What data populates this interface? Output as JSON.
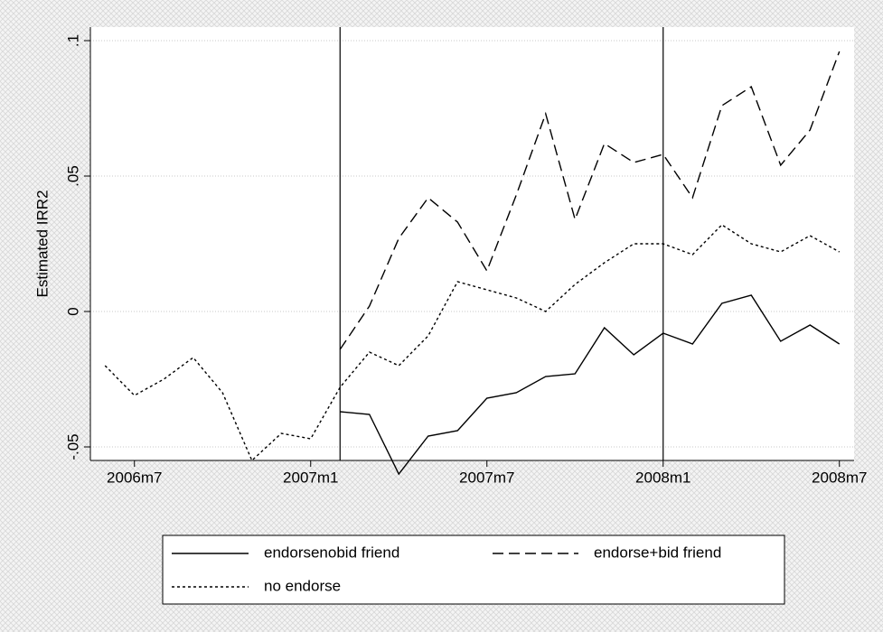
{
  "chart_data": {
    "type": "line",
    "y_label": "Estimated IRR2",
    "x": [
      557,
      558,
      559,
      560,
      561,
      562,
      563,
      564,
      565,
      566,
      567,
      568,
      569,
      570,
      571,
      572,
      573,
      574,
      575,
      576,
      577,
      578,
      579,
      580,
      581,
      582
    ],
    "series": [
      {
        "name": "endorsenobid friend",
        "color": "#000000",
        "dash": "solid",
        "values": [
          null,
          null,
          null,
          null,
          null,
          null,
          null,
          null,
          -0.037,
          -0.038,
          -0.06,
          -0.046,
          -0.044,
          -0.032,
          -0.03,
          -0.024,
          -0.023,
          -0.006,
          -0.016,
          -0.008,
          -0.012,
          0.003,
          0.006,
          -0.011,
          -0.005,
          -0.012
        ]
      },
      {
        "name": "endorse+bid friend",
        "color": "#000000",
        "dash": "dashed",
        "values": [
          null,
          null,
          null,
          null,
          null,
          null,
          null,
          null,
          -0.014,
          0.002,
          0.027,
          0.042,
          0.033,
          0.015,
          0.043,
          0.073,
          0.034,
          0.062,
          0.055,
          0.058,
          0.042,
          0.076,
          0.083,
          0.054,
          0.067,
          0.096
        ]
      },
      {
        "name": "no endorse",
        "color": "#000000",
        "dash": "dotted",
        "values": [
          -0.02,
          -0.031,
          -0.025,
          -0.017,
          -0.03,
          -0.055,
          -0.045,
          -0.047,
          -0.028,
          -0.015,
          -0.02,
          -0.009,
          0.011,
          0.008,
          0.005,
          0.0,
          0.01,
          0.018,
          0.025,
          0.025,
          0.021,
          0.032,
          0.025,
          0.022,
          0.028,
          0.022
        ]
      }
    ],
    "xlim": [
      556.5,
      582.5
    ],
    "xticks": [
      {
        "value": 558,
        "label": "2006m7"
      },
      {
        "value": 564,
        "label": "2007m1"
      },
      {
        "value": 570,
        "label": "2007m7"
      },
      {
        "value": 576,
        "label": "2008m1"
      },
      {
        "value": 582,
        "label": "2008m7"
      }
    ],
    "ylim": [
      -0.055,
      0.105
    ],
    "yticks": [
      {
        "value": -0.05,
        "label": "-.05"
      },
      0,
      {
        "value": 0.05,
        "label": ".05"
      },
      {
        "value": 0.1,
        "label": ".1"
      }
    ],
    "xlines": [
      565,
      576
    ],
    "grid": true,
    "legend": "bottom"
  }
}
